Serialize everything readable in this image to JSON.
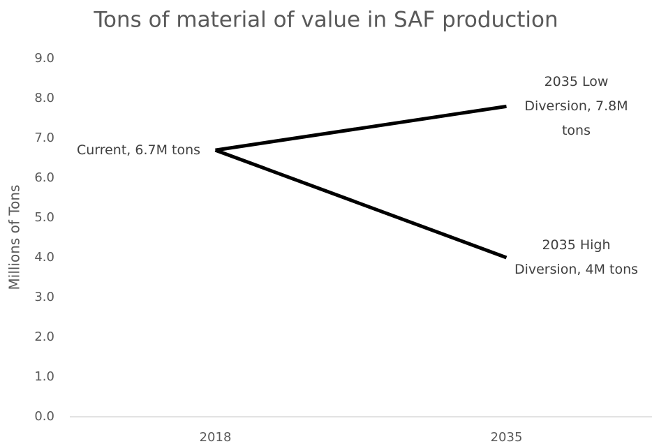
{
  "chart_data": {
    "type": "line",
    "title": "Tons of material of value in SAF production",
    "y_label": "Millions of Tons",
    "categories": [
      "2018",
      "2035"
    ],
    "series": [
      {
        "color": "#000000",
        "values": [
          6.7,
          7.8
        ],
        "value_labels": [
          "Current, 6.7M tons",
          "2035 Low Diversion, 7.8M tons"
        ]
      },
      {
        "color": "#000000",
        "values": [
          6.7,
          4
        ],
        "value_labels": [
          null,
          "2035 High Diversion, 4M tons"
        ]
      }
    ],
    "ylim": [
      0,
      9
    ],
    "yticks": [
      {
        "value": 0,
        "label": "0.0"
      },
      {
        "value": 1,
        "label": "1.0"
      },
      {
        "value": 2,
        "label": "2.0"
      },
      {
        "value": 3,
        "label": "3.0"
      },
      {
        "value": 4,
        "label": "4.0"
      },
      {
        "value": 5,
        "label": "5.0"
      },
      {
        "value": 6,
        "label": "6.0"
      },
      {
        "value": 7,
        "label": "7.0"
      },
      {
        "value": 8,
        "label": "8.0"
      },
      {
        "value": 9,
        "label": "9.0"
      }
    ],
    "grid": false
  }
}
